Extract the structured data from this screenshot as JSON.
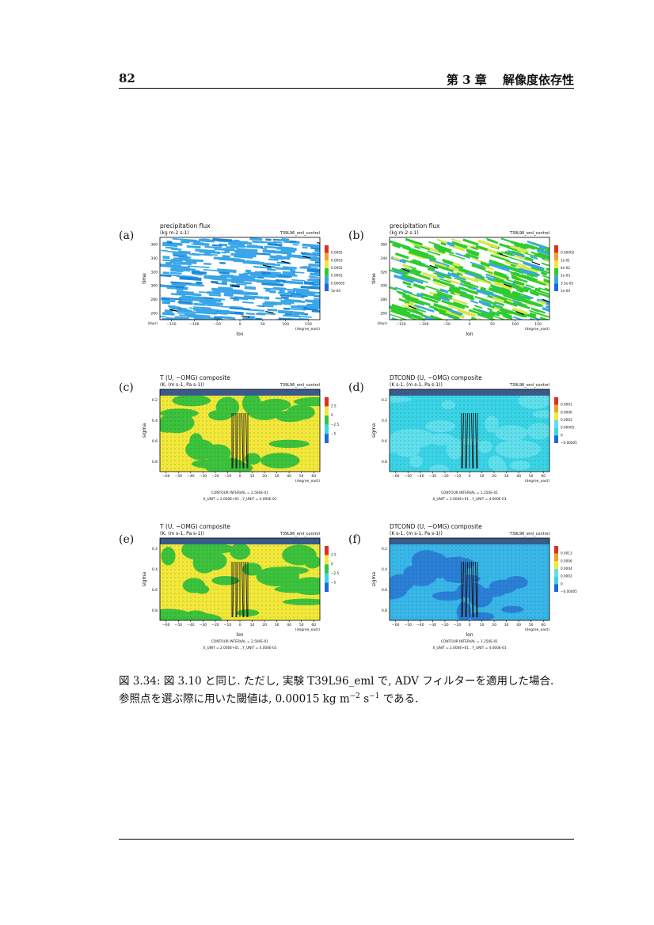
{
  "header": {
    "page_number": "82",
    "chapter": "第 3 章　 解像度依存性"
  },
  "panels": [
    {
      "label": "(a)",
      "title": "precipitation flux",
      "units": "(kg m-2 s-1)",
      "run": "T39L96_eml_control",
      "xlabel": "lon",
      "ylabel": "time",
      "xunit": "(degree_east)",
      "yunit": "(days)",
      "xticks": [
        "−150",
        "−100",
        "−50",
        "0",
        "50",
        "100",
        "150"
      ],
      "yticks": [
        "360",
        "340",
        "320",
        "300",
        "280",
        "260"
      ],
      "legend": [
        "0.0005",
        "0.0003",
        "0.0002",
        "0.0001",
        "0.00005",
        "1e-04"
      ],
      "kind": "hovmoller-blue"
    },
    {
      "label": "(b)",
      "title": "precipitation flux",
      "units": "(kg m-2 s-1)",
      "run": "T39L96_eml_control",
      "xlabel": "lon",
      "ylabel": "time",
      "xunit": "(degree_east)",
      "yunit": "(days)",
      "xticks": [
        "−150",
        "−100",
        "−50",
        "0",
        "50",
        "100",
        "150"
      ],
      "yticks": [
        "360",
        "340",
        "320",
        "300",
        "280",
        "260"
      ],
      "legend": [
        "0.00002",
        "1e-01",
        "4e-02",
        "1e-03",
        "3.5e-05",
        "1e-04"
      ],
      "kind": "hovmoller-green"
    },
    {
      "label": "(c)",
      "title": "T (U, −OMG) composite",
      "units": "(K, (m s-1, Pa s-1))",
      "run": "T39L96_eml_control",
      "xlabel": "",
      "ylabel": "sigma",
      "xunit": "(degree_east)",
      "yunit": "",
      "xticks": [
        "−60",
        "−50",
        "−40",
        "−30",
        "−20",
        "−10",
        "0",
        "10",
        "20",
        "30",
        "40",
        "50",
        "60"
      ],
      "yticks": [
        "0.2",
        "0.4",
        "0.6",
        "0.8"
      ],
      "legend": [
        "2.5",
        "0",
        "−2.5",
        "−5"
      ],
      "contour": "CONTOUR INTERVAL = 2.500E-01",
      "units_line": "X_UNIT = 2.000E+01 , Y_UNIT = 4.000E-01",
      "kind": "composite-yellow"
    },
    {
      "label": "(d)",
      "title": "DTCOND (U, −OMG) composite",
      "units": "(K s-1, (m s-1, Pa s-1))",
      "run": "T39L96_eml_control",
      "xlabel": "",
      "ylabel": "sigma",
      "xunit": "(degree_east)",
      "yunit": "",
      "xticks": [
        "−60",
        "−50",
        "−40",
        "−30",
        "−20",
        "−10",
        "0",
        "10",
        "20",
        "30",
        "40",
        "50",
        "60"
      ],
      "yticks": [
        "0.2",
        "0.4",
        "0.6",
        "0.8"
      ],
      "legend": [
        "0.0001",
        "0.0006",
        "0.0003",
        "0.00005",
        "0",
        "−0.00005"
      ],
      "contour": "CONTOUR INTERVAL = 1.250E-01",
      "units_line": "X_UNIT = 2.000E+01 , Y_UNIT = 4.000E-01",
      "kind": "composite-cyan"
    },
    {
      "label": "(e)",
      "title": "T (U, −OMG) composite",
      "units": "(K, (m s-1, Pa s-1))",
      "run": "T39L96_eml_control",
      "xlabel": "lon",
      "ylabel": "sigma",
      "xunit": "(degree_east)",
      "yunit": "",
      "xticks": [
        "−60",
        "−50",
        "−40",
        "−30",
        "−20",
        "−10",
        "0",
        "10",
        "20",
        "30",
        "40",
        "50",
        "60"
      ],
      "yticks": [
        "0.2",
        "0.4",
        "0.6",
        "0.8"
      ],
      "legend": [
        "2.5",
        "0",
        "−2.5",
        "−5"
      ],
      "contour": "CONTOUR INTERVAL = 2.500E-01",
      "units_line": "X_UNIT = 2.000E+01 , Y_UNIT = 4.000E-01",
      "kind": "composite-yellow"
    },
    {
      "label": "(f)",
      "title": "DTCOND (U, −OMG) composite",
      "units": "(K s-1, (m s-1, Pa s-1))",
      "run": "T39L96_eml_control",
      "xlabel": "lon",
      "ylabel": "sigma",
      "xunit": "(degree_east)",
      "yunit": "",
      "xticks": [
        "−60",
        "−50",
        "−40",
        "−30",
        "−20",
        "−10",
        "0",
        "10",
        "20",
        "30",
        "40",
        "50",
        "60"
      ],
      "yticks": [
        "0.2",
        "0.4",
        "0.6",
        "0.8"
      ],
      "legend": [
        "0.0013",
        "0.0006",
        "0.0004",
        "0.0002",
        "0",
        "−0.00005"
      ],
      "contour": "CONTOUR INTERVAL = 1.250E-01",
      "units_line": "X_UNIT = 2.000E+01 , Y_UNIT = 4.000E-01",
      "kind": "composite-blue"
    }
  ],
  "caption": {
    "line1": "図 3.34: 図 3.10 と同じ. ただし, 実験 T39L96_eml で, ADV フィルターを適用した場合.",
    "line2_a": "参照点を選ぶ際に用いた閾値は, 0.00015 kg m",
    "exp1": "−2",
    "line2_b": " s",
    "exp2": "−1",
    "line2_c": " である."
  }
}
